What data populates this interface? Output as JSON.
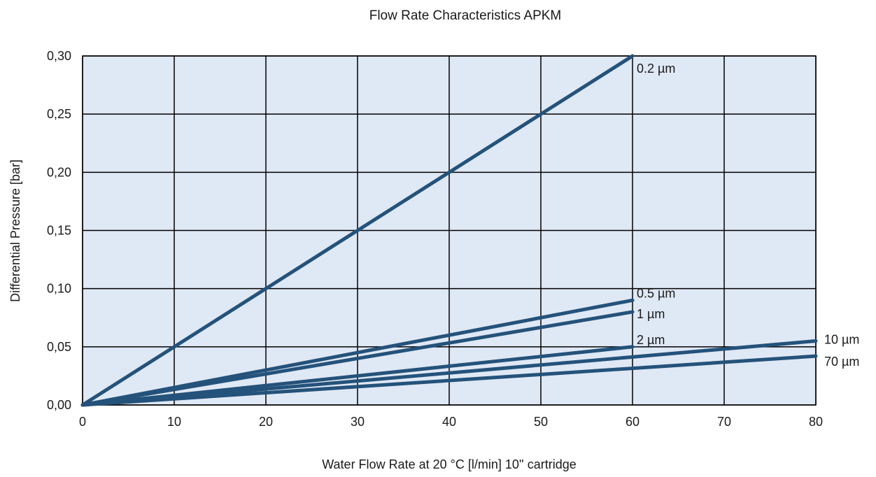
{
  "chart_data": {
    "type": "line",
    "title": "Flow Rate Characteristics APKM",
    "xlabel": "Water Flow Rate at 20 °C [l/min] 10'' cartridge",
    "ylabel": "Differential Pressure [bar]",
    "xlim": [
      0,
      80
    ],
    "ylim": [
      0,
      0.3
    ],
    "x_ticks": [
      0,
      10,
      20,
      30,
      40,
      50,
      60,
      70,
      80
    ],
    "x_tick_labels": [
      "0",
      "10",
      "20",
      "30",
      "40",
      "50",
      "60",
      "70",
      "80"
    ],
    "y_ticks": [
      0,
      0.05,
      0.1,
      0.15,
      0.2,
      0.25,
      0.3
    ],
    "y_tick_labels": [
      "0,00",
      "0,05",
      "0,10",
      "0,15",
      "0,20",
      "0,25",
      "0,30"
    ],
    "grid": true,
    "legend": "inline labels at line ends",
    "colors": {
      "line": "#24527a",
      "plot_bg": "#dfe8f5",
      "grid": "#000000"
    },
    "series": [
      {
        "name": "0.2 µm",
        "x": [
          0,
          60
        ],
        "y": [
          0,
          0.3
        ]
      },
      {
        "name": "0.5 µm",
        "x": [
          0,
          60
        ],
        "y": [
          0,
          0.09
        ]
      },
      {
        "name": "1 µm",
        "x": [
          0,
          60
        ],
        "y": [
          0,
          0.08
        ]
      },
      {
        "name": "2 µm",
        "x": [
          0,
          60
        ],
        "y": [
          0,
          0.05
        ]
      },
      {
        "name": "10 µm",
        "x": [
          0,
          80
        ],
        "y": [
          0,
          0.055
        ]
      },
      {
        "name": "70 µm",
        "x": [
          0,
          80
        ],
        "y": [
          0,
          0.042
        ]
      }
    ]
  }
}
